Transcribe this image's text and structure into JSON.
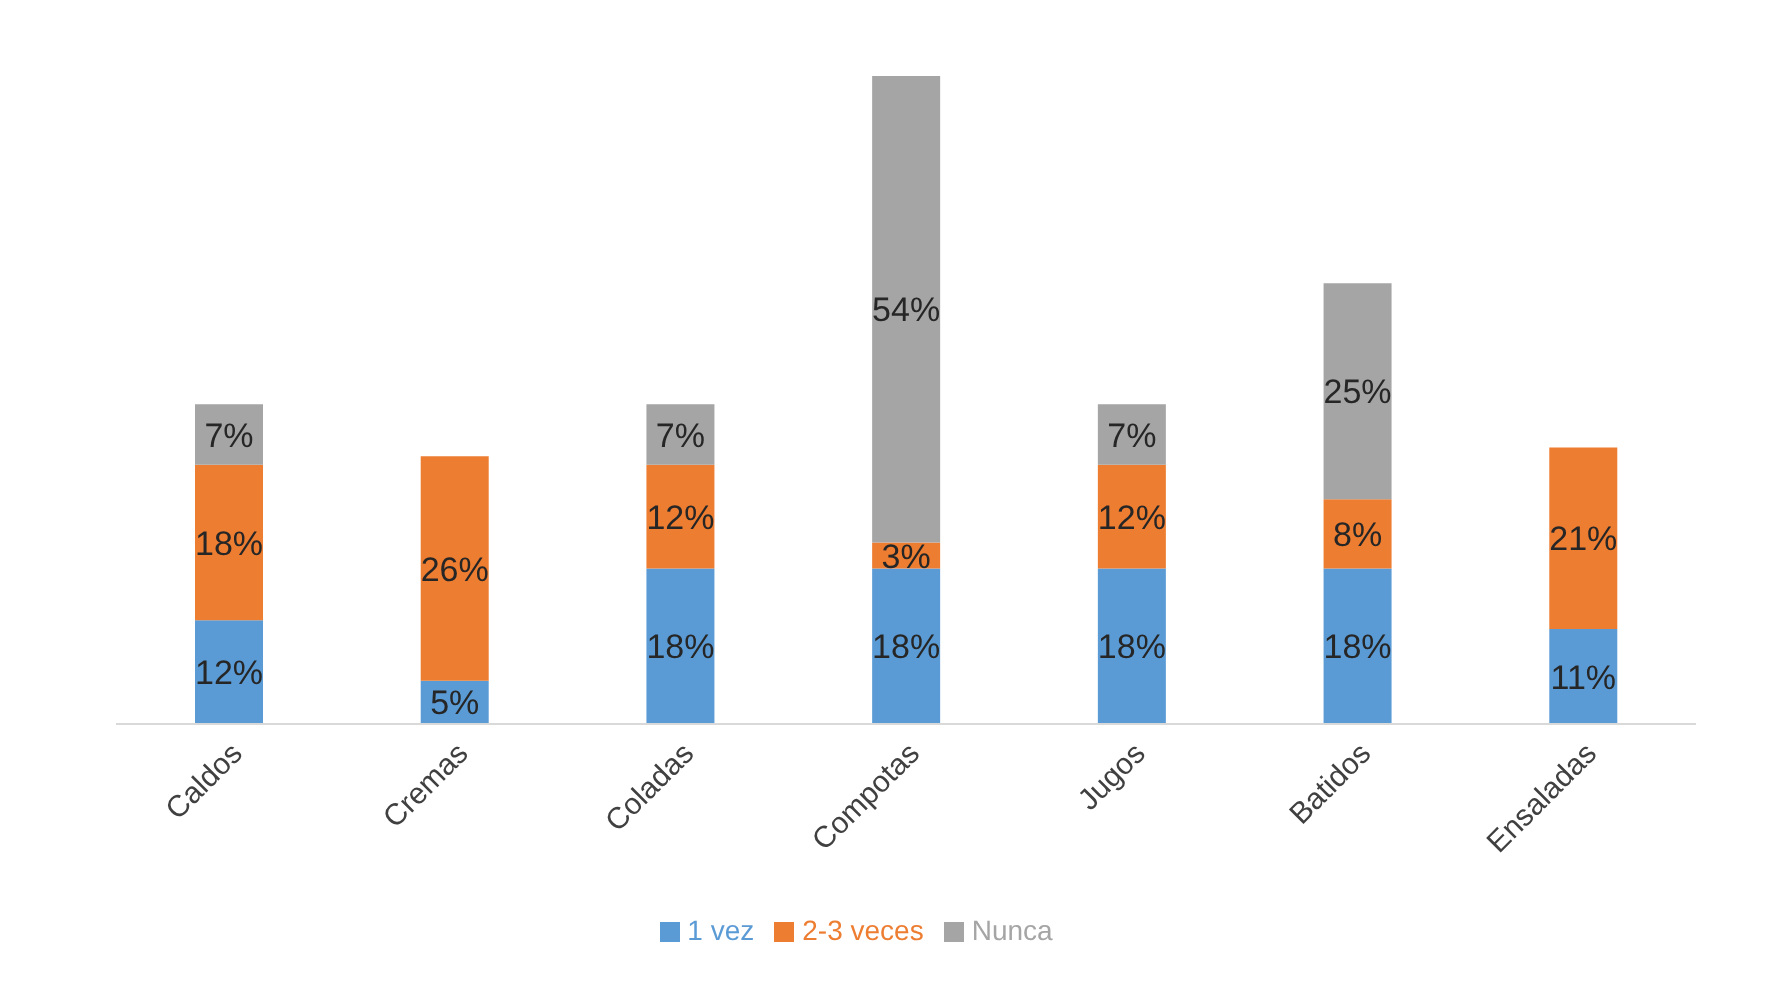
{
  "chart_data": {
    "type": "bar",
    "stacked": true,
    "categories": [
      "Caldos",
      "Cremas",
      "Coladas",
      "Compotas",
      "Jugos",
      "Batidos",
      "Ensaladas"
    ],
    "series": [
      {
        "name": "1 vez",
        "color": "#5b9bd5",
        "values": [
          12,
          5,
          18,
          18,
          18,
          18,
          11
        ],
        "value_labels": [
          "12%",
          "5%",
          "18%",
          "18%",
          "18%",
          "18%",
          "11%"
        ]
      },
      {
        "name": "2-3 veces",
        "color": "#ed7d31",
        "values": [
          18,
          26,
          12,
          3,
          12,
          8,
          21
        ],
        "value_labels": [
          "18%",
          "26%",
          "12%",
          "3%",
          "12%",
          "8%",
          "21%"
        ]
      },
      {
        "name": "Nunca",
        "color": "#a5a5a5",
        "values": [
          7,
          null,
          7,
          54,
          7,
          25,
          null
        ],
        "value_labels": [
          "7%",
          null,
          "7%",
          "54%",
          "7%",
          "25%",
          null
        ]
      }
    ],
    "tick_labels": "x",
    "legend": "bottom"
  }
}
